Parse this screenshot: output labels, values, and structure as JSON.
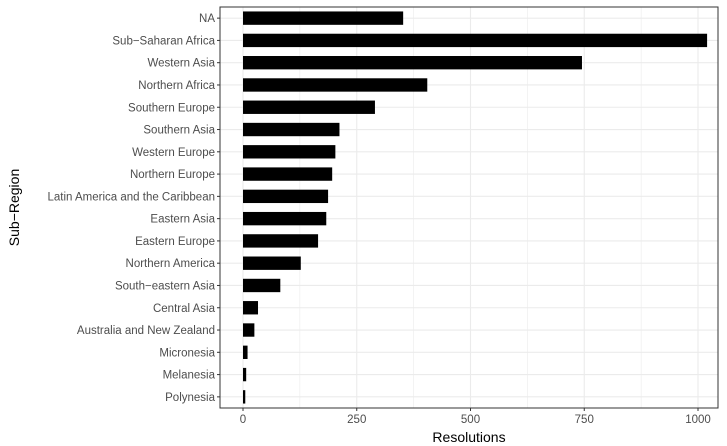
{
  "chart_data": {
    "type": "bar",
    "orientation": "horizontal",
    "categories": [
      "NA",
      "Sub−Saharan Africa",
      "Western Asia",
      "Northern Africa",
      "Southern Europe",
      "Southern Asia",
      "Western Europe",
      "Northern Europe",
      "Latin America and the Caribbean",
      "Eastern Asia",
      "Eastern Europe",
      "Northern America",
      "South−eastern Asia",
      "Central Asia",
      "Australia and New Zealand",
      "Micronesia",
      "Melanesia",
      "Polynesia"
    ],
    "values": [
      352,
      1020,
      745,
      405,
      290,
      212,
      203,
      196,
      187,
      183,
      165,
      127,
      82,
      33,
      25,
      10,
      7,
      5
    ],
    "xlabel": "Resolutions",
    "ylabel": "Sub−Region",
    "xlim": [
      0,
      1020
    ],
    "xticks": [
      0,
      250,
      500,
      750,
      1000
    ],
    "xtick_labels": [
      "0",
      "250",
      "500",
      "750",
      "1000"
    ],
    "grid": true,
    "bar_color": "#000000",
    "grid_color": "#ebebeb",
    "panel_border_color": "#333333"
  }
}
